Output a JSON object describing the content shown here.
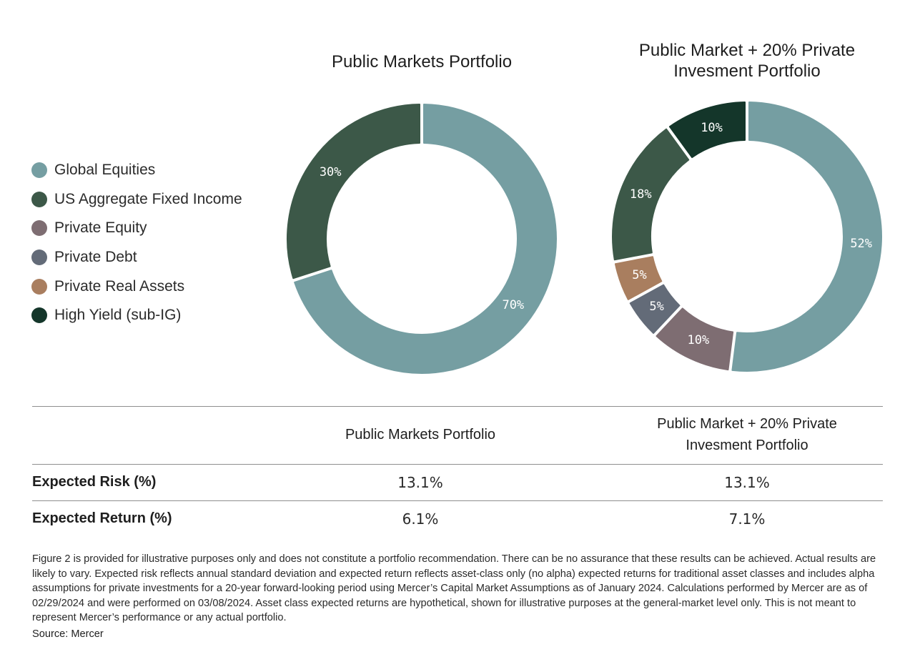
{
  "legend": [
    {
      "label": "Global Equities",
      "color": "#759ea2"
    },
    {
      "label": "US Aggregate Fixed Income",
      "color": "#3c5848"
    },
    {
      "label": "Private Equity",
      "color": "#7e6d72"
    },
    {
      "label": "Private Debt",
      "color": "#636b78"
    },
    {
      "label": "Private Real Assets",
      "color": "#a97e5f"
    },
    {
      "label": "High Yield (sub-IG)",
      "color": "#14362a"
    }
  ],
  "chart_data": [
    {
      "type": "pie",
      "title": "Public Markets Portfolio",
      "slices": [
        {
          "label": "Global Equities",
          "value": 70,
          "label_text": "70%",
          "color": "#759ea2"
        },
        {
          "label": "US Aggregate Fixed Income",
          "value": 30,
          "label_text": "30%",
          "color": "#3c5848"
        }
      ]
    },
    {
      "type": "pie",
      "title": "Public Market + 20% Private Invesment Portfolio",
      "title_lines": [
        "Public Market + 20% Private",
        "Invesment Portfolio"
      ],
      "slices": [
        {
          "label": "Global Equities",
          "value": 52,
          "label_text": "52%",
          "color": "#759ea2"
        },
        {
          "label": "Private Equity",
          "value": 10,
          "label_text": "10%",
          "color": "#7e6d72"
        },
        {
          "label": "Private Debt",
          "value": 5,
          "label_text": "5%",
          "color": "#636b78"
        },
        {
          "label": "Private Real Assets",
          "value": 5,
          "label_text": "5%",
          "color": "#a97e5f"
        },
        {
          "label": "US Aggregate Fixed Income",
          "value": 18,
          "label_text": "18%",
          "color": "#3c5848"
        },
        {
          "label": "High Yield (sub-IG)",
          "value": 10,
          "label_text": "10%",
          "color": "#14362a"
        }
      ]
    }
  ],
  "table": {
    "col1_header": "Public Markets Portfolio",
    "col2_header_lines": [
      "Public Market + 20% Private",
      "Invesment Portfolio"
    ],
    "rows": [
      {
        "label": "Expected Risk (%)",
        "col1": "13.1%",
        "col2": "13.1%"
      },
      {
        "label": "Expected Return (%)",
        "col1": "6.1%",
        "col2": "7.1%"
      }
    ]
  },
  "footnote": "Figure 2 is provided for illustrative purposes only and does not constitute a portfolio recommendation. There can be no assurance that these results can be achieved. Actual results are likely to vary. Expected risk reflects annual standard deviation and expected return reflects asset-class only (no alpha) expected returns for traditional asset classes and includes alpha assumptions for private investments for a 20-year forward-looking period using Mercer’s Capital Market Assumptions as of January 2024. Calculations performed by Mercer are as of 02/29/2024 and were performed on 03/08/2024. Asset class expected returns are hypothetical, shown for illustrative purposes at the general-market level only. This is not meant to represent Mercer’s performance or any actual portfolio.",
  "source": "Source: Mercer"
}
